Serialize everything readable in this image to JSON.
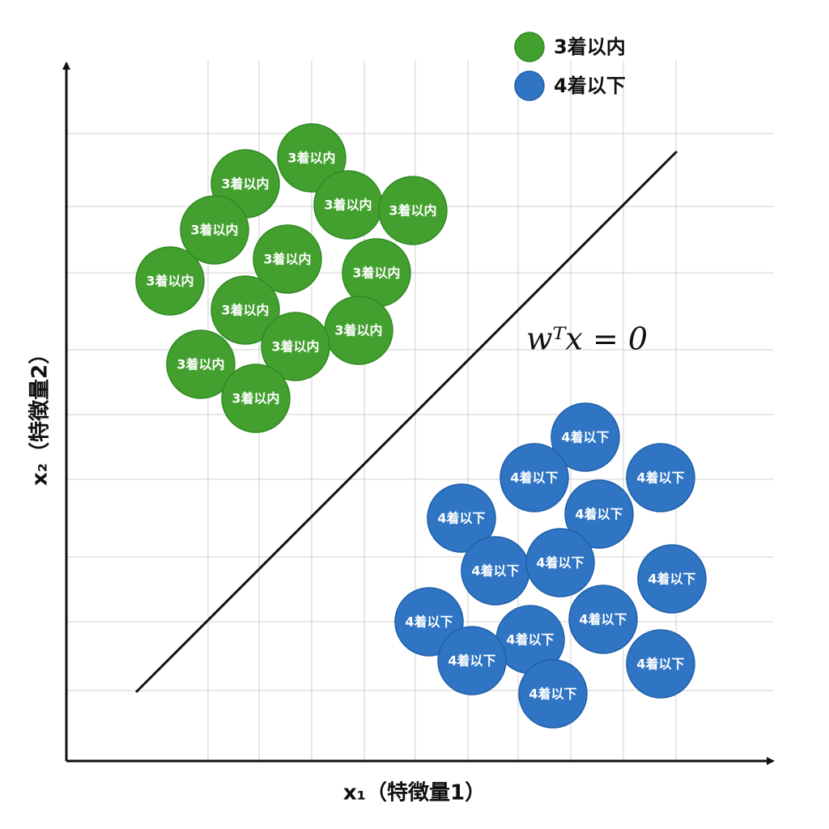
{
  "classes": [
    {
      "label": "3着以内",
      "color": "#43a02f",
      "members": [
        "3着以内",
        "3着以内",
        "3着以内",
        "3着以内",
        "3着以内",
        "3着以内",
        "3着以内",
        "3着以内",
        "3着以内",
        "3着以内",
        "3着以内",
        "3着以内",
        "3着以内"
      ]
    },
    {
      "label": "4着以下",
      "color": "#2f75c4",
      "members": [
        "4着以下",
        "4着以下",
        "4着以下",
        "4着以下",
        "4着以下",
        "4着以下",
        "4着以下",
        "4着以下",
        "4着以下",
        "4着以下",
        "4着以下",
        "4着以下",
        "4着以下",
        "4着以下"
      ]
    }
  ],
  "x_axis_label": "x₁（特徴量1）",
  "y_axis_label": "x₂（特徴量2）",
  "boundary_label": "wᵀx = 0"
}
